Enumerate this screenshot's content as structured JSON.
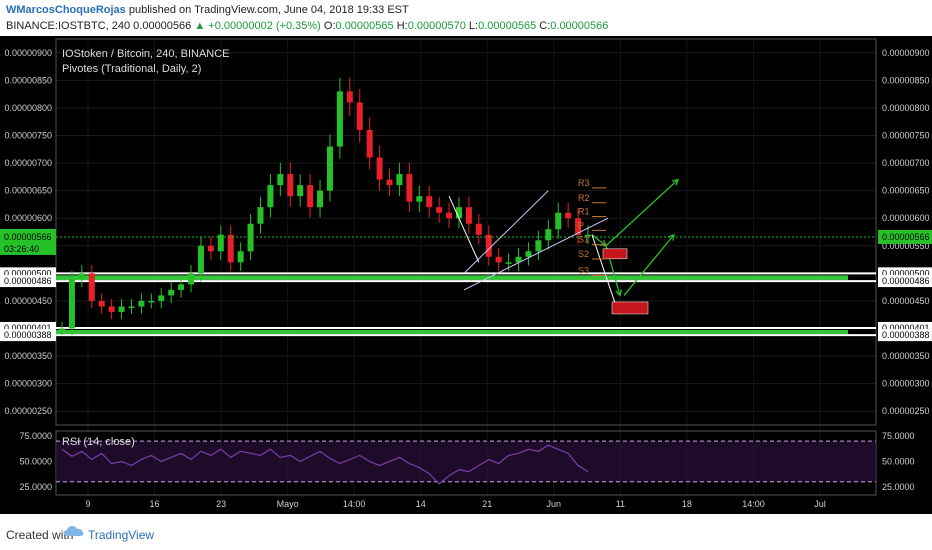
{
  "header": {
    "author": "WMarcosChoqueRojas",
    "published": "published on TradingView.com, June 04, 2018 19:33 EST",
    "symbol_interval": "BINANCE:IOSTBTC, 240",
    "last": "0.00000566",
    "change": "▲ +0.00000002 (+0.35%)",
    "ohlc": {
      "o_label": "O:",
      "o": "0.00000565",
      "h_label": "H:",
      "h": "0.00000570",
      "l_label": "L:",
      "l": "0.00000565",
      "c_label": "C:",
      "c": "0.00000566"
    }
  },
  "legend": {
    "title": "IOStoken / Bitcoin, 240, BINANCE",
    "indicator": "Pivotes (Traditional, Daily, 2)",
    "rsi": "RSI (14, close)"
  },
  "current_price": {
    "value": "0.00000566",
    "countdown": "03:26:40"
  },
  "colors": {
    "bull": "#26c128",
    "bear": "#e8202a",
    "rsi": "#7b3fa8",
    "zone": "#35c43a",
    "pivot": "#c8782d",
    "channel": "#c8c8ff",
    "arrow": "#26c128",
    "target": "#c4161c",
    "background": "#000000"
  },
  "footer": {
    "created": "Created with",
    "brand": "TradingView",
    "logo_icon": "tradingview-cloud-icon"
  },
  "chart_data": {
    "type": "candlestick",
    "title": "IOStoken / Bitcoin, 240, BINANCE",
    "y_axis_labels": [
      "0.00000900",
      "0.00000850",
      "0.00000800",
      "0.00000750",
      "0.00000700",
      "0.00000650",
      "0.00000600",
      "0.00000550",
      "0.00000500",
      "0.00000450",
      "0.00000400",
      "0.00000350",
      "0.00000300",
      "0.00000250"
    ],
    "ylim": [
      2.25e-06,
      9.25e-06
    ],
    "x_axis_labels": [
      "9",
      "16",
      "23",
      "Mayo",
      "14:00",
      "14",
      "21",
      "Jun",
      "11",
      "18",
      "14:00",
      "Jul"
    ],
    "support_zones": [
      {
        "upper": "0.00000500",
        "lower": "0.00000486",
        "upper_value": 5e-06,
        "lower_value": 4.86e-06
      },
      {
        "upper": "0.00000401",
        "lower": "0.00000388",
        "upper_value": 4.01e-06,
        "lower_value": 3.88e-06
      }
    ],
    "close_series": [
      4e-06,
      4.9e-06,
      5e-06,
      4.5e-06,
      4.4e-06,
      4.3e-06,
      4.4e-06,
      4.4e-06,
      4.5e-06,
      4.5e-06,
      4.6e-06,
      4.7e-06,
      4.8e-06,
      5e-06,
      5.5e-06,
      5.4e-06,
      5.7e-06,
      5.2e-06,
      5.4e-06,
      5.9e-06,
      6.2e-06,
      6.6e-06,
      6.8e-06,
      6.4e-06,
      6.6e-06,
      6.2e-06,
      6.5e-06,
      7.3e-06,
      8.3e-06,
      8.1e-06,
      7.6e-06,
      7.1e-06,
      6.7e-06,
      6.6e-06,
      6.8e-06,
      6.3e-06,
      6.4e-06,
      6.2e-06,
      6.1e-06,
      6e-06,
      6.2e-06,
      5.9e-06,
      5.7e-06,
      5.3e-06,
      5.2e-06,
      5.2e-06,
      5.3e-06,
      5.4e-06,
      5.6e-06,
      5.8e-06,
      6.1e-06,
      6e-06,
      5.7e-06,
      5.7e-06
    ],
    "pivots": [
      {
        "label": "R3",
        "value": 6.55e-06
      },
      {
        "label": "R2",
        "value": 6.28e-06
      },
      {
        "label": "R1",
        "value": 6.03e-06
      },
      {
        "label": "P",
        "value": 5.78e-06
      },
      {
        "label": "S1",
        "value": 5.52e-06
      },
      {
        "label": "S2",
        "value": 5.26e-06
      },
      {
        "label": "S3",
        "value": 4.96e-06
      }
    ],
    "rsi": {
      "label": "RSI (14, close)",
      "axis_labels": [
        "75.0000",
        "50.0000",
        "25.0000"
      ],
      "bands": [
        70,
        30
      ],
      "ylim": [
        17,
        80
      ],
      "values": [
        62,
        55,
        60,
        52,
        58,
        48,
        50,
        46,
        52,
        56,
        50,
        54,
        58,
        52,
        60,
        56,
        62,
        54,
        60,
        58,
        56,
        62,
        54,
        56,
        50,
        55,
        60,
        53,
        48,
        52,
        56,
        50,
        46,
        50,
        54,
        48,
        44,
        38,
        28,
        36,
        42,
        40,
        46,
        52,
        48,
        56,
        58,
        62,
        60,
        66,
        62,
        58,
        46,
        40
      ]
    }
  }
}
